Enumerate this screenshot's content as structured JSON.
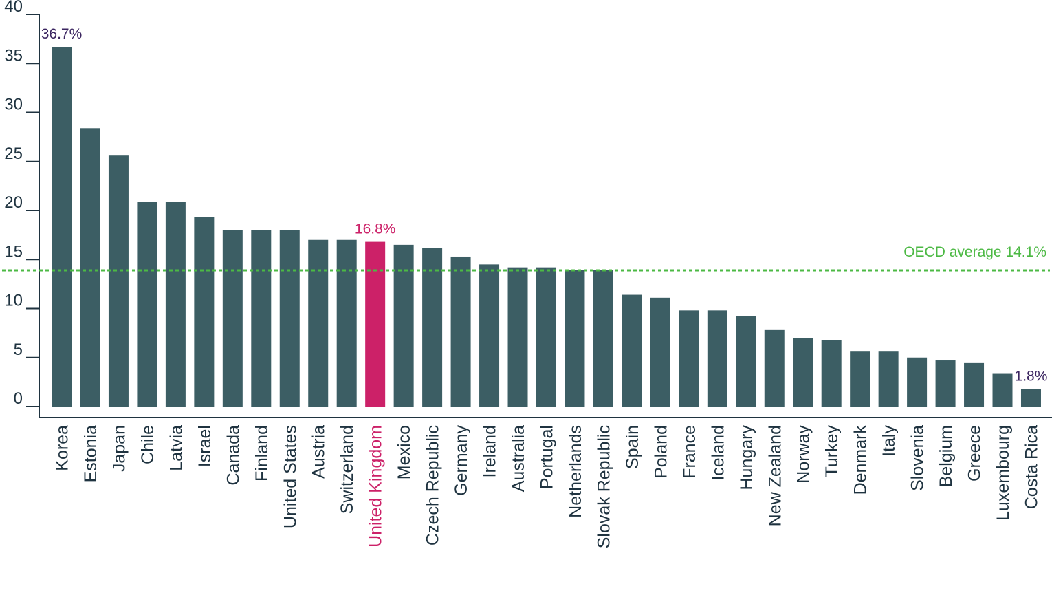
{
  "chart_data": {
    "type": "bar",
    "title": "",
    "xlabel": "",
    "ylabel": "",
    "ylim": [
      0,
      40
    ],
    "yticks": [
      0,
      5,
      10,
      15,
      20,
      25,
      30,
      35,
      40
    ],
    "grid": false,
    "categories": [
      "Korea",
      "Estonia",
      "Japan",
      "Chile",
      "Latvia",
      "Israel",
      "Canada",
      "Finland",
      "United States",
      "Austria",
      "Switzerland",
      "United Kingdom",
      "Mexico",
      "Czech Republic",
      "Germany",
      "Ireland",
      "Australia",
      "Portugal",
      "Netherlands",
      "Slovak Republic",
      "Spain",
      "Poland",
      "France",
      "Iceland",
      "Hungary",
      "New Zealand",
      "Norway",
      "Turkey",
      "Denmark",
      "Italy",
      "Slovenia",
      "Belgium",
      "Greece",
      "Luxembourg",
      "Costa Rica"
    ],
    "values": [
      36.7,
      28.4,
      25.6,
      20.9,
      20.9,
      19.3,
      18.0,
      18.0,
      18.0,
      17.0,
      17.0,
      16.8,
      16.5,
      16.2,
      15.3,
      14.5,
      14.2,
      14.2,
      13.9,
      13.9,
      11.4,
      11.1,
      9.8,
      9.8,
      9.2,
      7.8,
      7.0,
      6.8,
      5.6,
      5.6,
      5.0,
      4.7,
      4.5,
      3.4,
      1.8
    ],
    "highlight": "United Kingdom",
    "data_labels": [
      {
        "category": "Korea",
        "text": "36.7%"
      },
      {
        "category": "United Kingdom",
        "text": "16.8%"
      },
      {
        "category": "Costa Rica",
        "text": "1.8%"
      }
    ],
    "reference_line": {
      "value": 14.1,
      "label": "OECD average 14.1%"
    },
    "colors": {
      "bar": "#3c5e64",
      "highlight": "#cc2168",
      "label": "#3b2560",
      "reference": "#4cb944",
      "axis": "#1f3340"
    }
  }
}
